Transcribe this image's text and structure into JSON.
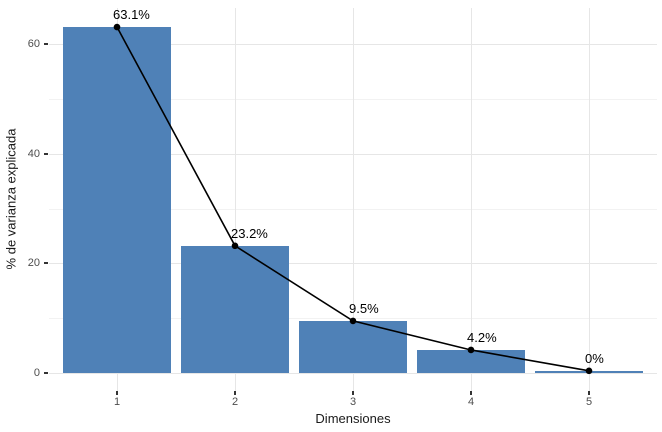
{
  "chart_data": {
    "type": "bar",
    "subtype": "scree-plot-with-line-overlay",
    "categories": [
      1,
      2,
      3,
      4,
      5
    ],
    "values": [
      63.1,
      23.2,
      9.5,
      4.2,
      0.4
    ],
    "point_labels": [
      "63.1%",
      "23.2%",
      "9.5%",
      "4.2%",
      "0%"
    ],
    "title": "",
    "xlabel": "Dimensiones",
    "ylabel": "% de varianza explicada",
    "x_ticks": [
      "1",
      "2",
      "3",
      "4",
      "5"
    ],
    "y_ticks": [
      0,
      20,
      40,
      60
    ],
    "y_minor_gridlines": [
      10,
      30,
      50
    ],
    "ylim": [
      -3.3,
      66.2
    ],
    "xlim": [
      0.4,
      5.58
    ],
    "grid": "horizontal major+minor, vertical major only",
    "legend": "none",
    "colors": {
      "bar_fill": "#4F81B7",
      "line": "#000000",
      "point": "#000000",
      "grid_major": "#E6E6E6",
      "grid_minor": "#F2F2F2",
      "tick_mark": "#333333",
      "tick_label": "#4D4D4D",
      "axis_title": "#1A1A1A",
      "background": "#FFFFFF"
    }
  }
}
